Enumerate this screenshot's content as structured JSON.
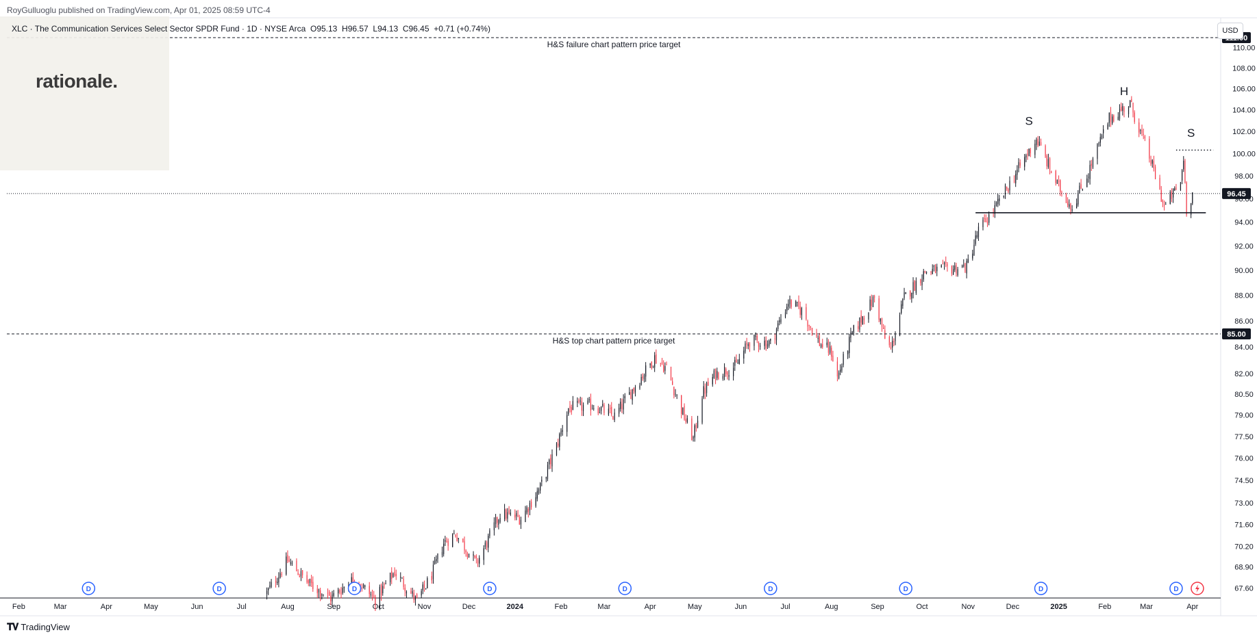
{
  "header": {
    "published": "RoyGulluoglu published on TradingView.com, Apr 01, 2025 08:59 UTC-4"
  },
  "legend": {
    "symbol": "XLC · The Communication Services Select Sector SPDR Fund · 1D · NYSE Arca",
    "open_label": "O",
    "open": "95.13",
    "high_label": "H",
    "high": "96.57",
    "low_label": "L",
    "low": "94.13",
    "close_label": "C",
    "close": "96.45",
    "change": "+0.71 (+0.74%)"
  },
  "logo": {
    "text": "rationale."
  },
  "currency": "USD",
  "footer": {
    "brand": "TradingView",
    "icon": "tradingview-logo-icon"
  },
  "colors": {
    "up": "#131722",
    "down": "#f23645",
    "badge": "#131722",
    "dividend": "#2962ff",
    "earnings": "#f23645"
  },
  "chart_data": {
    "type": "candlestick",
    "title": "",
    "ylim": [
      67.0,
      113.0
    ],
    "y_scale": "log",
    "y_ticks": [
      67.6,
      68.9,
      70.2,
      71.6,
      73.0,
      74.5,
      76.0,
      77.5,
      79.0,
      80.5,
      82.0,
      84.0,
      86.0,
      88.0,
      90.0,
      92.0,
      94.0,
      96.0,
      98.0,
      100.0,
      102.0,
      104.0,
      106.0,
      108.0,
      110.0
    ],
    "y_tick_labels": [
      "67.60",
      "68.90",
      "70.20",
      "71.60",
      "73.00",
      "74.50",
      "76.00",
      "77.50",
      "79.00",
      "80.50",
      "82.00",
      "84.00",
      "86.00",
      "88.00",
      "90.00",
      "92.00",
      "94.00",
      "96.00",
      "98.00",
      "100.00",
      "102.00",
      "104.00",
      "106.00",
      "108.00",
      "110.00"
    ],
    "x_labels": [
      "Feb",
      "Mar",
      "Apr",
      "May",
      "Jun",
      "Jul",
      "Aug",
      "Sep",
      "Oct",
      "Nov",
      "Dec",
      "2024",
      "Feb",
      "Mar",
      "Apr",
      "May",
      "Jun",
      "Jul",
      "Aug",
      "Sep",
      "Oct",
      "Nov",
      "Dec",
      "2025",
      "Feb",
      "Mar",
      "Apr"
    ],
    "x_label_bold": [
      false,
      false,
      false,
      false,
      false,
      false,
      false,
      false,
      false,
      false,
      false,
      true,
      false,
      false,
      false,
      false,
      false,
      false,
      false,
      false,
      false,
      false,
      false,
      true,
      false,
      false,
      false
    ],
    "x_label_dates": [
      "2023-02-01",
      "2023-03-01",
      "2023-04-01",
      "2023-05-01",
      "2023-06-01",
      "2023-07-01",
      "2023-08-01",
      "2023-09-01",
      "2023-10-01",
      "2023-11-01",
      "2023-12-01",
      "2024-01-01",
      "2024-02-01",
      "2024-03-01",
      "2024-04-01",
      "2024-05-01",
      "2024-06-01",
      "2024-07-01",
      "2024-08-01",
      "2024-09-01",
      "2024-10-01",
      "2024-11-01",
      "2024-12-01",
      "2025-01-01",
      "2025-02-01",
      "2025-03-01",
      "2025-04-01"
    ],
    "x_range": [
      "2023-01-24",
      "2025-04-20"
    ],
    "price_path": [
      {
        "date": "2023-07-18",
        "close": 67.3
      },
      {
        "date": "2023-08-01",
        "close": 69.3
      },
      {
        "date": "2023-08-15",
        "close": 67.9
      },
      {
        "date": "2023-08-30",
        "close": 67.0
      },
      {
        "date": "2023-09-15",
        "close": 68.2
      },
      {
        "date": "2023-09-29",
        "close": 66.9
      },
      {
        "date": "2023-10-12",
        "close": 68.6
      },
      {
        "date": "2023-10-27",
        "close": 66.8
      },
      {
        "date": "2023-11-06",
        "close": 68.4
      },
      {
        "date": "2023-11-14",
        "close": 70.4
      },
      {
        "date": "2023-11-22",
        "close": 71.0
      },
      {
        "date": "2023-12-06",
        "close": 69.1
      },
      {
        "date": "2023-12-14",
        "close": 70.6
      },
      {
        "date": "2023-12-22",
        "close": 72.3
      },
      {
        "date": "2024-01-05",
        "close": 72.0
      },
      {
        "date": "2024-01-18",
        "close": 74.0
      },
      {
        "date": "2024-01-29",
        "close": 76.8
      },
      {
        "date": "2024-02-06",
        "close": 79.5
      },
      {
        "date": "2024-02-23",
        "close": 79.7
      },
      {
        "date": "2024-03-08",
        "close": 78.9
      },
      {
        "date": "2024-03-20",
        "close": 80.8
      },
      {
        "date": "2024-04-04",
        "close": 83.2
      },
      {
        "date": "2024-04-12",
        "close": 82.4
      },
      {
        "date": "2024-04-22",
        "close": 79.4
      },
      {
        "date": "2024-04-30",
        "close": 77.3
      },
      {
        "date": "2024-05-06",
        "close": 80.5
      },
      {
        "date": "2024-05-15",
        "close": 82.0
      },
      {
        "date": "2024-05-29",
        "close": 82.6
      },
      {
        "date": "2024-06-07",
        "close": 84.5
      },
      {
        "date": "2024-06-21",
        "close": 84.3
      },
      {
        "date": "2024-07-03",
        "close": 87.5
      },
      {
        "date": "2024-07-12",
        "close": 86.8
      },
      {
        "date": "2024-07-24",
        "close": 84.3
      },
      {
        "date": "2024-08-01",
        "close": 83.6
      },
      {
        "date": "2024-08-05",
        "close": 81.7
      },
      {
        "date": "2024-08-15",
        "close": 85.0
      },
      {
        "date": "2024-08-30",
        "close": 87.8
      },
      {
        "date": "2024-09-06",
        "close": 84.6
      },
      {
        "date": "2024-09-10",
        "close": 83.8
      },
      {
        "date": "2024-09-19",
        "close": 87.8
      },
      {
        "date": "2024-10-03",
        "close": 89.9
      },
      {
        "date": "2024-10-17",
        "close": 90.1
      },
      {
        "date": "2024-10-31",
        "close": 90.3
      },
      {
        "date": "2024-11-08",
        "close": 93.3
      },
      {
        "date": "2024-11-20",
        "close": 95.3
      },
      {
        "date": "2024-12-03",
        "close": 98.2
      },
      {
        "date": "2024-12-17",
        "close": 101.3
      },
      {
        "date": "2024-12-31",
        "close": 97.2
      },
      {
        "date": "2025-01-10",
        "close": 95.3
      },
      {
        "date": "2025-01-21",
        "close": 98.3
      },
      {
        "date": "2025-02-04",
        "close": 103.2
      },
      {
        "date": "2025-02-18",
        "close": 104.6
      },
      {
        "date": "2025-03-04",
        "close": 99.3
      },
      {
        "date": "2025-03-13",
        "close": 95.3
      },
      {
        "date": "2025-03-24",
        "close": 97.4
      },
      {
        "date": "2025-03-26",
        "close": 99.6
      },
      {
        "date": "2025-03-28",
        "close": 95.1
      },
      {
        "date": "2025-04-01",
        "close": 96.45
      }
    ],
    "horizontal_lines": [
      {
        "price": 111.0,
        "style": "dashed",
        "label": "H&S failure chart pattern price target",
        "badge": "111.00"
      },
      {
        "price": 85.0,
        "style": "dashed",
        "label": "H&S top chart pattern price target",
        "badge": "85.00"
      },
      {
        "price": 96.45,
        "style": "dotted",
        "badge": "96.45"
      }
    ],
    "neckline": {
      "price": 94.8,
      "from": "2024-11-06",
      "to": "2025-04-10"
    },
    "right_shoulder_line": {
      "price": 100.3,
      "from": "2025-03-21",
      "to": "2025-04-15"
    },
    "pattern_labels": [
      {
        "text": "S",
        "date": "2024-12-12",
        "price": 102.6
      },
      {
        "text": "H",
        "date": "2025-02-14",
        "price": 105.4
      },
      {
        "text": "S",
        "date": "2025-03-31",
        "price": 101.5
      }
    ],
    "dividend_markers": [
      "2023-03-20",
      "2023-06-16",
      "2023-09-15",
      "2023-12-15",
      "2024-03-15",
      "2024-06-21",
      "2024-09-20",
      "2024-12-20",
      "2025-03-21"
    ],
    "dividend_label": "D",
    "earnings_marker": "2025-03-27"
  }
}
